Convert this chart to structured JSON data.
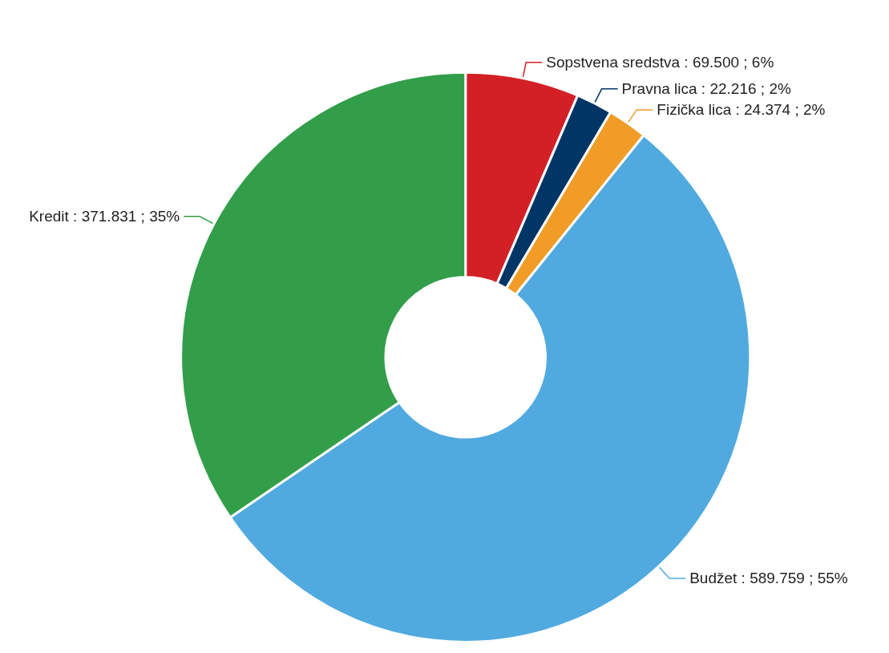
{
  "chart_data": {
    "type": "donut",
    "categories": [
      "Sopstvena sredstva",
      "Pravna lica",
      "Fizička lica",
      "Budžet",
      "Kredit"
    ],
    "values": [
      69500,
      22216,
      24374,
      589759,
      371831
    ],
    "colors": [
      "#d32027",
      "#003566",
      "#f09c27",
      "#50aae0",
      "#329e4a"
    ],
    "value_labels": [
      ": 69.500 ; 6%",
      ": 22.216 ; 2%",
      ": 24.374 ; 2%",
      ": 589.759 ; 55%",
      ": 371.831 ; 35%"
    ],
    "legend": false
  }
}
